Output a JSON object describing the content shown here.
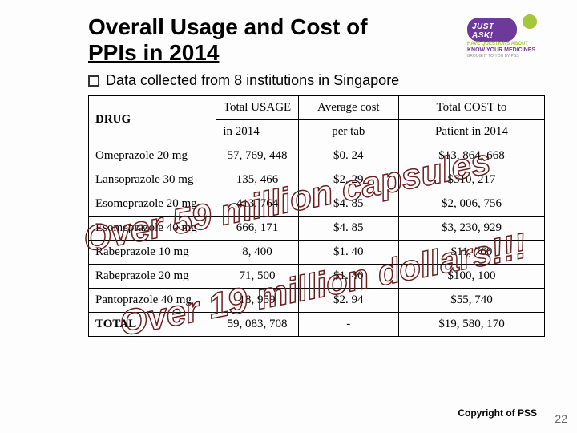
{
  "title_line1": "Overall Usage and Cost of",
  "title_line2": "PPIs in 2014",
  "logo": {
    "bubble": "JUST ASK!",
    "tag1": "HAVE QUESTIONS ABOUT",
    "tag2": "KNOW YOUR MEDICINES",
    "tag3": "BROUGHT TO YOU BY PSS"
  },
  "bullet": "Data collected from 8 institutions in Singapore",
  "columns": {
    "drug": "DRUG",
    "usage_l1": "Total USAGE",
    "usage_l2": "in 2014",
    "cost_l1": "Average cost",
    "cost_l2": "per tab",
    "total_l1": "Total COST to",
    "total_l2": "Patient in 2014"
  },
  "rows": [
    {
      "drug": "Omeprazole 20 mg",
      "usage": "57, 769, 448",
      "cost": "$0. 24",
      "total": "$13, 864, 668"
    },
    {
      "drug": "Lansoprazole 30 mg",
      "usage": "135, 466",
      "cost": "$2. 29",
      "total": "$310, 217"
    },
    {
      "drug": "Esomeprazole 20 mg",
      "usage": "413, 764",
      "cost": "$4. 85",
      "total": "$2, 006, 756"
    },
    {
      "drug": "Esomeprazole 40 mg",
      "usage": "666, 171",
      "cost": "$4. 85",
      "total": "$3, 230, 929"
    },
    {
      "drug": "Rabeprazole 10 mg",
      "usage": "8, 400",
      "cost": "$1. 40",
      "total": "$11, 760"
    },
    {
      "drug": "Rabeprazole 20 mg",
      "usage": "71, 500",
      "cost": "$1. 40",
      "total": "$100, 100"
    },
    {
      "drug": "Pantoprazole 40 mg",
      "usage": "18, 959",
      "cost": "$2. 94",
      "total": "$55, 740"
    }
  ],
  "total_row": {
    "label": "TOTAL",
    "usage": "59, 083, 708",
    "cost": "-",
    "total": "$19, 580, 170"
  },
  "overlay1": "Over 59 million capsules",
  "overlay2": "Over 19 million dollars!!!",
  "footer": "Copyright of PSS",
  "page": "22"
}
